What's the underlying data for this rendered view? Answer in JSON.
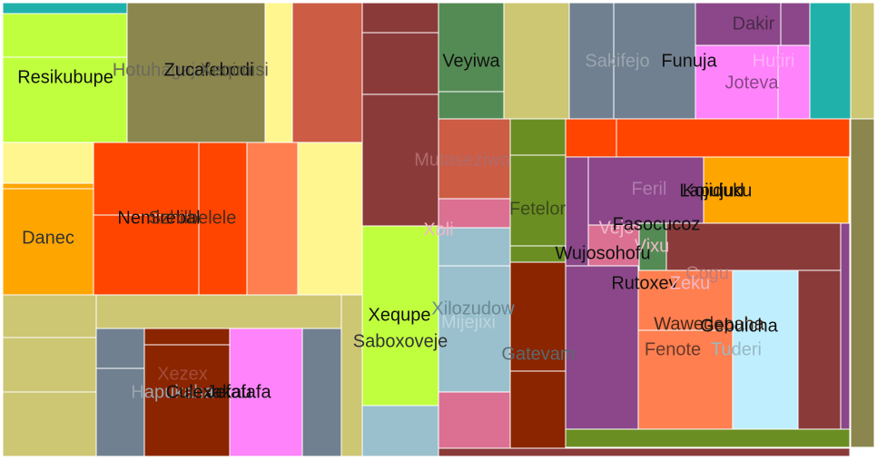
{
  "chart_data": {
    "type": "treemap",
    "title": "",
    "cells": [
      {
        "label": "Resikubupe",
        "color": "#C0FF3E",
        "text": "#111111"
      },
      {
        "label": "Hotuhagaje",
        "color": "#8B864E",
        "text": "#6b6b5a"
      },
      {
        "label": "Zucafebodi",
        "color": "#8B864E",
        "text": "#111111"
      },
      {
        "label": "Xeqimisi",
        "color": "#8B864E",
        "text": "#5a5a44"
      },
      {
        "label": "Danec",
        "color": "#FFA500",
        "text": "#333333"
      },
      {
        "label": "Nemirebal",
        "color": "#FF4500",
        "text": "#111111"
      },
      {
        "label": "Szhilbelele",
        "color": "#FF4500",
        "text": "#4a2a1a"
      },
      {
        "label": "Hapukaha",
        "color": "#708090",
        "text": "#9aa4ad"
      },
      {
        "label": "Xezex",
        "color": "#8B2500",
        "text": "#a34a3a"
      },
      {
        "label": "Culexakau",
        "color": "#8B2500",
        "text": "#111111"
      },
      {
        "label": "Jefafafa",
        "color": "#FF83FA",
        "text": "#111111"
      },
      {
        "label": "Mutaseziwo",
        "color": "#8B3A3A",
        "text": "#b06a6a"
      },
      {
        "label": "Veyiwa",
        "color": "#548B54",
        "text": "#111111"
      },
      {
        "label": "Sakifejo",
        "color": "#708090",
        "text": "#9aa4ad"
      },
      {
        "label": "Funuja",
        "color": "#708090",
        "text": "#111111"
      },
      {
        "label": "Dakir",
        "color": "#8B4789",
        "text": "#4a2a4a"
      },
      {
        "label": "Hutiri",
        "color": "#FF83FA",
        "text": "#ffb0fb"
      },
      {
        "label": "Joteva",
        "color": "#FF83FA",
        "text": "#8b4789"
      },
      {
        "label": "Xoli",
        "color": "#DB7093",
        "text": "#f0b8c8"
      },
      {
        "label": "Fetelor",
        "color": "#6B8E23",
        "text": "#3a4a1a"
      },
      {
        "label": "Xequpe",
        "color": "#C0FF3E",
        "text": "#111111"
      },
      {
        "label": "Saboxoveje",
        "color": "#C0FF3E",
        "text": "#333333"
      },
      {
        "label": "Xilozudow",
        "color": "#9AC0CD",
        "text": "#6a8a96"
      },
      {
        "label": "Mijejixi",
        "color": "#9AC0CD",
        "text": "#bcd6df"
      },
      {
        "label": "Gatevam",
        "color": "#8B2500",
        "text": "#5a6a70"
      },
      {
        "label": "Feril",
        "color": "#8B4789",
        "text": "#b07ab0"
      },
      {
        "label": "Lapujud",
        "color": "#8B4789",
        "text": "#111111"
      },
      {
        "label": "Kojiduku",
        "color": "#FFA500",
        "text": "#111111"
      },
      {
        "label": "Vejo",
        "color": "#DB7093",
        "text": "#f0b8c8"
      },
      {
        "label": "Fasocucoz",
        "color": "#8B3A3A",
        "text": "#111111"
      },
      {
        "label": "Vixu",
        "color": "#DB7093",
        "text": "#f0b8c8"
      },
      {
        "label": "Wujosohofu",
        "color": "#548B54",
        "text": "#111111"
      },
      {
        "label": "Cogu",
        "color": "#8B3A3A",
        "text": "#c07a7a"
      },
      {
        "label": "Rutoxev",
        "color": "#8B4789",
        "text": "#111111"
      },
      {
        "label": "Zeku",
        "color": "#DB7093",
        "text": "#f0b8c8"
      },
      {
        "label": "Wawedepaha",
        "color": "#FF7F50",
        "text": "#4a2a1a"
      },
      {
        "label": "Gebuicha",
        "color": "#BFEFFF",
        "text": "#111111"
      },
      {
        "label": "Fenote",
        "color": "#FF7F50",
        "text": "#6a3a2a"
      },
      {
        "label": "Tuderi",
        "color": "#BFEFFF",
        "text": "#9ab8c4"
      }
    ]
  }
}
